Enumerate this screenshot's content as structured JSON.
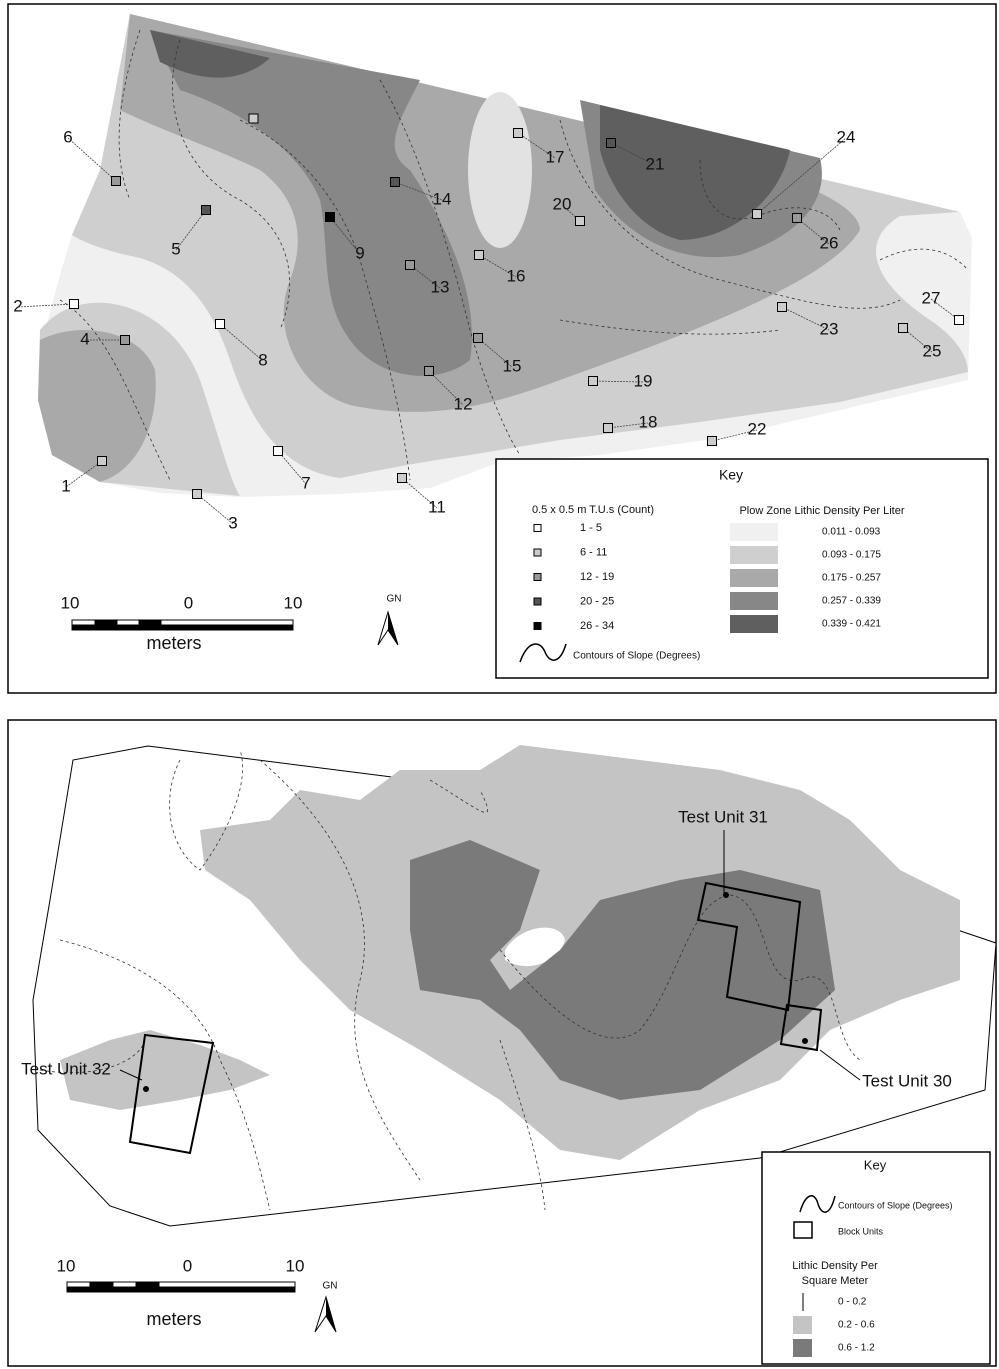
{
  "top_map": {
    "unit_labels": [
      "1",
      "2",
      "3",
      "4",
      "5",
      "6",
      "7",
      "8",
      "9",
      "11",
      "12",
      "13",
      "14",
      "15",
      "16",
      "17",
      "18",
      "19",
      "20",
      "21",
      "22",
      "23",
      "24",
      "25",
      "26",
      "27"
    ],
    "scale": {
      "labels": [
        "10",
        "0",
        "10"
      ],
      "unit": "meters"
    },
    "north": "GN",
    "key": {
      "title": "Key",
      "units_title": "0.5 x 0.5 m T.U.s (Count)",
      "unit_classes": [
        "1 - 5",
        "6 - 11",
        "12 - 19",
        "20 - 25",
        "26 - 34"
      ],
      "density_title": "Plow Zone Lithic Density Per Liter",
      "density_classes": [
        "0.011 - 0.093",
        "0.093 - 0.175",
        "0.175 - 0.257",
        "0.257 - 0.339",
        "0.339 - 0.421"
      ],
      "contours": "Contours of Slope (Degrees)"
    }
  },
  "bottom_map": {
    "test_units": [
      "Test Unit 31",
      "Test Unit 30",
      "Test Unit 32"
    ],
    "scale": {
      "labels": [
        "10",
        "0",
        "10"
      ],
      "unit": "meters"
    },
    "north": "GN",
    "key": {
      "title": "Key",
      "contours": "Contours of Slope (Degrees)",
      "block_units": "Block Units",
      "density_title": [
        "Lithic Density Per",
        "Square Meter"
      ],
      "density_classes": [
        "0 - 0.2",
        "0.2 - 0.6",
        "0.6 - 1.2"
      ]
    }
  }
}
